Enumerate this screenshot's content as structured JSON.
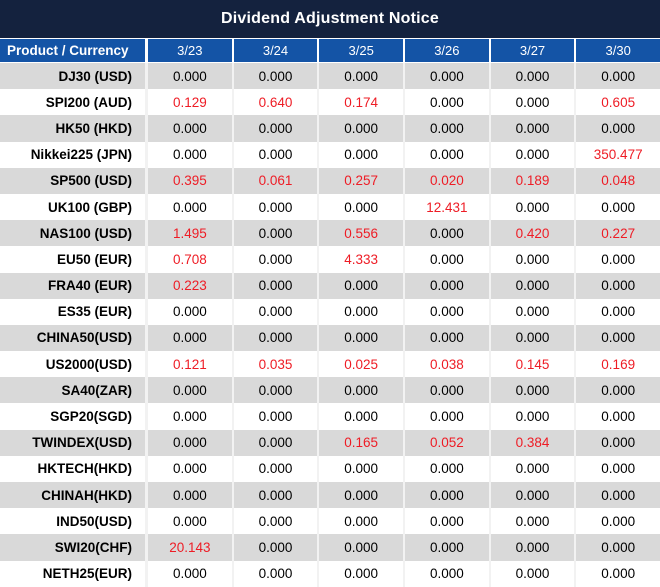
{
  "title": "Dividend Adjustment Notice",
  "colors": {
    "title_bg": "#14223e",
    "header_bg": "#1454a6",
    "row_alt_bg": "#d9d9d9",
    "row_bg": "#ffffff",
    "red": "#ee1c25",
    "text": "#000000",
    "header_text": "#ffffff"
  },
  "table": {
    "product_header": "Product / Currency",
    "date_headers": [
      "3/23",
      "3/24",
      "3/25",
      "3/26",
      "3/27",
      "3/30"
    ],
    "rows": [
      {
        "product": "DJ30 (USD)",
        "values": [
          "0.000",
          "0.000",
          "0.000",
          "0.000",
          "0.000",
          "0.000"
        ],
        "red": [
          false,
          false,
          false,
          false,
          false,
          false
        ]
      },
      {
        "product": "SPI200 (AUD)",
        "values": [
          "0.129",
          "0.640",
          "0.174",
          "0.000",
          "0.000",
          "0.605"
        ],
        "red": [
          true,
          true,
          true,
          false,
          false,
          true
        ]
      },
      {
        "product": "HK50 (HKD)",
        "values": [
          "0.000",
          "0.000",
          "0.000",
          "0.000",
          "0.000",
          "0.000"
        ],
        "red": [
          false,
          false,
          false,
          false,
          false,
          false
        ]
      },
      {
        "product": "Nikkei225 (JPN)",
        "values": [
          "0.000",
          "0.000",
          "0.000",
          "0.000",
          "0.000",
          "350.477"
        ],
        "red": [
          false,
          false,
          false,
          false,
          false,
          true
        ]
      },
      {
        "product": "SP500 (USD)",
        "values": [
          "0.395",
          "0.061",
          "0.257",
          "0.020",
          "0.189",
          "0.048"
        ],
        "red": [
          true,
          true,
          true,
          true,
          true,
          true
        ]
      },
      {
        "product": "UK100 (GBP)",
        "values": [
          "0.000",
          "0.000",
          "0.000",
          "12.431",
          "0.000",
          "0.000"
        ],
        "red": [
          false,
          false,
          false,
          true,
          false,
          false
        ]
      },
      {
        "product": "NAS100 (USD)",
        "values": [
          "1.495",
          "0.000",
          "0.556",
          "0.000",
          "0.420",
          "0.227"
        ],
        "red": [
          true,
          false,
          true,
          false,
          true,
          true
        ]
      },
      {
        "product": "EU50 (EUR)",
        "values": [
          "0.708",
          "0.000",
          "4.333",
          "0.000",
          "0.000",
          "0.000"
        ],
        "red": [
          true,
          false,
          true,
          false,
          false,
          false
        ]
      },
      {
        "product": "FRA40 (EUR)",
        "values": [
          "0.223",
          "0.000",
          "0.000",
          "0.000",
          "0.000",
          "0.000"
        ],
        "red": [
          true,
          false,
          false,
          false,
          false,
          false
        ]
      },
      {
        "product": "ES35 (EUR)",
        "values": [
          "0.000",
          "0.000",
          "0.000",
          "0.000",
          "0.000",
          "0.000"
        ],
        "red": [
          false,
          false,
          false,
          false,
          false,
          false
        ]
      },
      {
        "product": "CHINA50(USD)",
        "values": [
          "0.000",
          "0.000",
          "0.000",
          "0.000",
          "0.000",
          "0.000"
        ],
        "red": [
          false,
          false,
          false,
          false,
          false,
          false
        ]
      },
      {
        "product": "US2000(USD)",
        "values": [
          "0.121",
          "0.035",
          "0.025",
          "0.038",
          "0.145",
          "0.169"
        ],
        "red": [
          true,
          true,
          true,
          true,
          true,
          true
        ]
      },
      {
        "product": "SA40(ZAR)",
        "values": [
          "0.000",
          "0.000",
          "0.000",
          "0.000",
          "0.000",
          "0.000"
        ],
        "red": [
          false,
          false,
          false,
          false,
          false,
          false
        ]
      },
      {
        "product": "SGP20(SGD)",
        "values": [
          "0.000",
          "0.000",
          "0.000",
          "0.000",
          "0.000",
          "0.000"
        ],
        "red": [
          false,
          false,
          false,
          false,
          false,
          false
        ]
      },
      {
        "product": "TWINDEX(USD)",
        "values": [
          "0.000",
          "0.000",
          "0.165",
          "0.052",
          "0.384",
          "0.000"
        ],
        "red": [
          false,
          false,
          true,
          true,
          true,
          false
        ]
      },
      {
        "product": "HKTECH(HKD)",
        "values": [
          "0.000",
          "0.000",
          "0.000",
          "0.000",
          "0.000",
          "0.000"
        ],
        "red": [
          false,
          false,
          false,
          false,
          false,
          false
        ]
      },
      {
        "product": "CHINAH(HKD)",
        "values": [
          "0.000",
          "0.000",
          "0.000",
          "0.000",
          "0.000",
          "0.000"
        ],
        "red": [
          false,
          false,
          false,
          false,
          false,
          false
        ]
      },
      {
        "product": "IND50(USD)",
        "values": [
          "0.000",
          "0.000",
          "0.000",
          "0.000",
          "0.000",
          "0.000"
        ],
        "red": [
          false,
          false,
          false,
          false,
          false,
          false
        ]
      },
      {
        "product": "SWI20(CHF)",
        "values": [
          "20.143",
          "0.000",
          "0.000",
          "0.000",
          "0.000",
          "0.000"
        ],
        "red": [
          true,
          false,
          false,
          false,
          false,
          false
        ]
      },
      {
        "product": "NETH25(EUR)",
        "values": [
          "0.000",
          "0.000",
          "0.000",
          "0.000",
          "0.000",
          "0.000"
        ],
        "red": [
          false,
          false,
          false,
          false,
          false,
          false
        ]
      }
    ]
  }
}
